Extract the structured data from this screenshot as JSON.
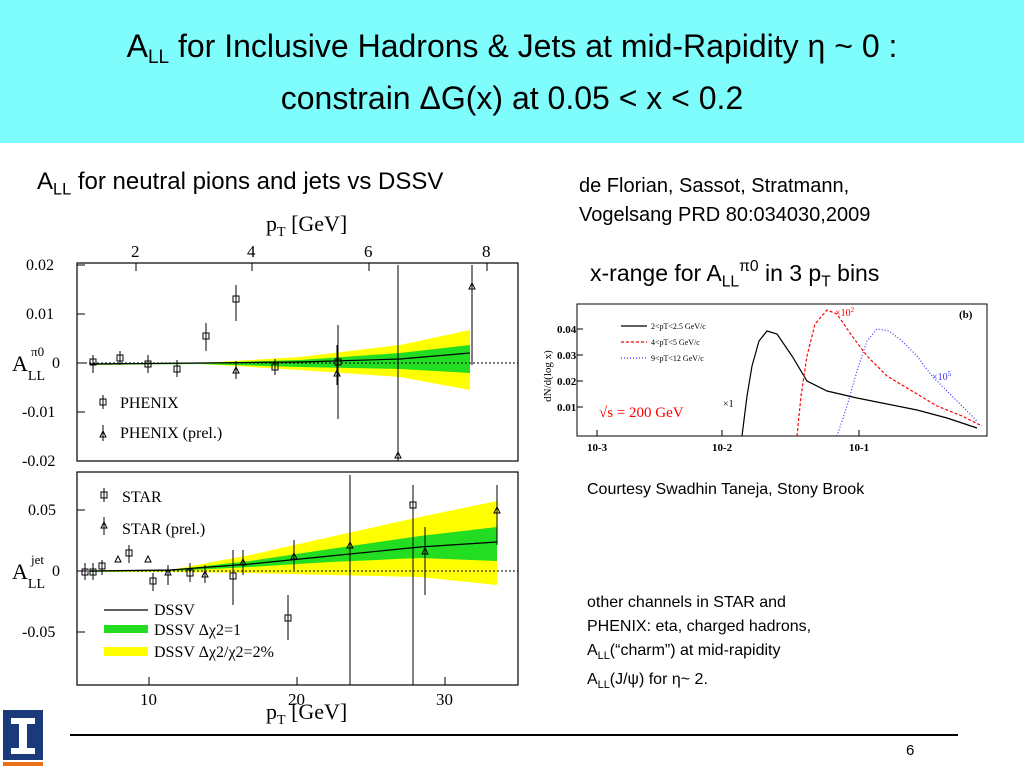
{
  "slide": {
    "title_line1_pre": "A",
    "title_line1_sub": "LL",
    "title_line1_post": " for Inclusive Hadrons & Jets at mid-Rapidity η ~ 0 :",
    "title_line2": "constrain ΔG(x) at 0.05 < x < 0.2",
    "left_caption_pre": "A",
    "left_caption_sub": "LL",
    "left_caption_post": " for neutral pions and jets vs DSSV",
    "ref_line1": "de Florian, Sassot, Stratmann,",
    "ref_line2": "Vogelsang PRD 80:034030,2009",
    "xrange_pre": "x-range for A",
    "xrange_sub": "LL",
    "xrange_sup": "π0",
    "xrange_mid": " in 3 p",
    "xrange_sub2": "T",
    "xrange_post": " bins",
    "courtesy": "Courtesy Swadhin Taneja, Stony Brook",
    "other_line1": "other channels in STAR and",
    "other_line2": "PHENIX: eta, charged hadrons,",
    "other_line3_pre": "A",
    "other_line3_sub": "LL",
    "other_line3_post": "(“charm”) at mid-rapidity",
    "other_line4_pre": "A",
    "other_line4_sub": "LL",
    "other_line4_post": "(J/ψ) for η~ 2.",
    "page_number": "6"
  },
  "colors": {
    "header_bg": "#7ffcfc",
    "band_green": "#22dd22",
    "band_yellow": "#ffff00",
    "red_dashed": "#ff0000",
    "blue_dotted": "#3333ff"
  },
  "left_plot": {
    "top_axis_label": "p",
    "top_axis_label_sub": "T",
    "top_axis_unit": " [GeV]",
    "top_ticks": [
      "2",
      "4",
      "6",
      "8"
    ],
    "upper_yticks": [
      "0.02",
      "0.01",
      "0",
      "-0.01",
      "-0.02"
    ],
    "upper_ylabel": "A",
    "upper_ylabel_sub": "LL",
    "upper_ylabel_sup": "π0",
    "upper_legend": [
      "PHENIX",
      "PHENIX (prel.)"
    ],
    "lower_yticks": [
      "0.05",
      "0",
      "-0.05"
    ],
    "lower_ylabel": "A",
    "lower_ylabel_sub": "LL",
    "lower_ylabel_sup": "jet",
    "lower_legend_markers": [
      "STAR",
      "STAR (prel.)"
    ],
    "lower_legend_lines": [
      "DSSV",
      "DSSV Δχ2=1",
      "DSSV Δχ2/χ2=2%"
    ],
    "bottom_ticks": [
      "10",
      "20",
      "30"
    ],
    "bottom_axis_label": "p",
    "bottom_axis_label_sub": "T",
    "bottom_axis_unit": " [GeV]"
  },
  "right_plot": {
    "panel_label": "(b)",
    "ylabel": "dN/d(log x)",
    "yticks": [
      "0.04",
      "0.03",
      "0.02",
      "0.01"
    ],
    "xticks": [
      "10-3",
      "10-2",
      "10-1"
    ],
    "legend": [
      "2<pT<2.5 GeV/c",
      "4<pT<5 GeV/c",
      "9<pT<12 GeV/c"
    ],
    "scale_x1": "×1",
    "scale_x102": "×10",
    "scale_x102_exp": "2",
    "scale_x105": "×10",
    "scale_x105_exp": "5",
    "sqrt_s": "√s = 200 GeV"
  }
}
